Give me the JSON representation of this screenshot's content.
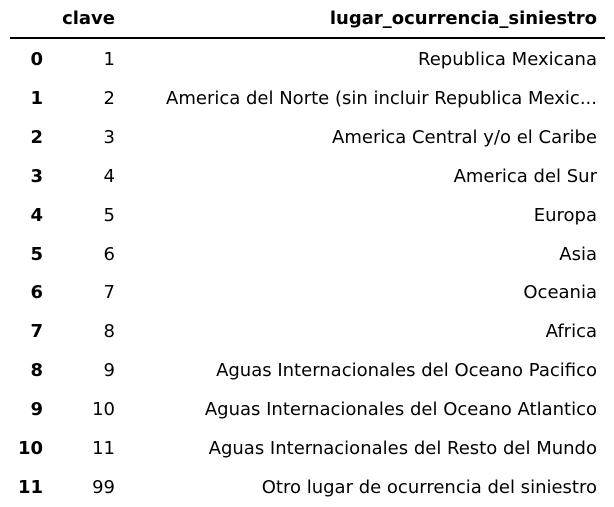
{
  "table": {
    "columns": [
      "clave",
      "lugar_ocurrencia_siniestro"
    ],
    "rows": [
      {
        "index": "0",
        "clave": "1",
        "lugar": "Republica Mexicana"
      },
      {
        "index": "1",
        "clave": "2",
        "lugar": "America del Norte (sin incluir Republica Mexic..."
      },
      {
        "index": "2",
        "clave": "3",
        "lugar": "America Central y/o el Caribe"
      },
      {
        "index": "3",
        "clave": "4",
        "lugar": "America del Sur"
      },
      {
        "index": "4",
        "clave": "5",
        "lugar": "Europa"
      },
      {
        "index": "5",
        "clave": "6",
        "lugar": "Asia"
      },
      {
        "index": "6",
        "clave": "7",
        "lugar": "Oceania"
      },
      {
        "index": "7",
        "clave": "8",
        "lugar": "Africa"
      },
      {
        "index": "8",
        "clave": "9",
        "lugar": "Aguas Internacionales del Oceano Pacifico"
      },
      {
        "index": "9",
        "clave": "10",
        "lugar": "Aguas Internacionales del Oceano Atlantico"
      },
      {
        "index": "10",
        "clave": "11",
        "lugar": "Aguas Internacionales del Resto del Mundo"
      },
      {
        "index": "11",
        "clave": "99",
        "lugar": "Otro lugar de ocurrencia del siniestro"
      }
    ]
  }
}
